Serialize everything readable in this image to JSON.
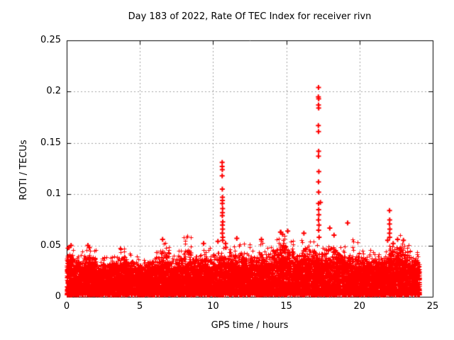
{
  "chart_data": {
    "type": "scatter",
    "title": "Day 183 of 2022, Rate Of TEC Index for receiver rivn",
    "xlabel": "GPS time / hours",
    "ylabel": "ROTI / TECUs",
    "xlim": [
      0,
      25
    ],
    "ylim": [
      0,
      0.25
    ],
    "xticks": [
      0,
      5,
      10,
      15,
      20,
      25
    ],
    "xtick_labels": [
      "0",
      "5",
      "10",
      "15",
      "20",
      "25"
    ],
    "yticks": [
      0,
      0.05,
      0.1,
      0.15,
      0.2,
      0.25
    ],
    "ytick_labels": [
      "0",
      "0.05",
      "0.1",
      "0.15",
      "0.2",
      "0.25"
    ],
    "grid": {
      "on": true,
      "style": "dashed",
      "color": "#a0a0a0",
      "at": "major-ticks"
    },
    "legend": "none",
    "marker": {
      "glyph": "plus",
      "color": "#ff0000"
    },
    "border_color": "#000000",
    "series_name": "ROTI",
    "outliers": [
      [
        10.62,
        0.131
      ],
      [
        10.62,
        0.127
      ],
      [
        10.63,
        0.124
      ],
      [
        10.62,
        0.118
      ],
      [
        10.63,
        0.105
      ],
      [
        10.64,
        0.097
      ],
      [
        10.64,
        0.094
      ],
      [
        10.63,
        0.091
      ],
      [
        10.65,
        0.086
      ],
      [
        10.64,
        0.082
      ],
      [
        10.63,
        0.079
      ],
      [
        10.66,
        0.073
      ],
      [
        10.64,
        0.07
      ],
      [
        10.65,
        0.066
      ],
      [
        10.63,
        0.062
      ],
      [
        10.66,
        0.058
      ],
      [
        10.65,
        0.055
      ],
      [
        10.85,
        0.052
      ],
      [
        10.87,
        0.048
      ],
      [
        10.33,
        0.054
      ],
      [
        17.2,
        0.204
      ],
      [
        17.19,
        0.195
      ],
      [
        17.21,
        0.193
      ],
      [
        17.2,
        0.187
      ],
      [
        17.21,
        0.184
      ],
      [
        17.19,
        0.167
      ],
      [
        17.2,
        0.161
      ],
      [
        17.21,
        0.142
      ],
      [
        17.2,
        0.137
      ],
      [
        17.22,
        0.122
      ],
      [
        17.2,
        0.112
      ],
      [
        17.21,
        0.102
      ],
      [
        17.2,
        0.091
      ],
      [
        17.33,
        0.092
      ],
      [
        17.21,
        0.085
      ],
      [
        17.22,
        0.08
      ],
      [
        17.2,
        0.075
      ],
      [
        17.23,
        0.07
      ],
      [
        17.21,
        0.065
      ],
      [
        17.24,
        0.058
      ],
      [
        22.05,
        0.084
      ],
      [
        22.06,
        0.075
      ],
      [
        22.05,
        0.071
      ],
      [
        22.07,
        0.066
      ],
      [
        22.05,
        0.062
      ],
      [
        22.06,
        0.058
      ],
      [
        21.92,
        0.055
      ],
      [
        22.3,
        0.052
      ],
      [
        19.19,
        0.072
      ],
      [
        17.97,
        0.067
      ],
      [
        18.26,
        0.06
      ],
      [
        6.55,
        0.056
      ],
      [
        14.6,
        0.063
      ],
      [
        14.75,
        0.061
      ],
      [
        16.2,
        0.062
      ],
      [
        11.62,
        0.057
      ],
      [
        0.15,
        0.048
      ],
      [
        0.3,
        0.05
      ],
      [
        1.45,
        0.05
      ],
      [
        1.55,
        0.048
      ],
      [
        9.35,
        0.052
      ],
      [
        13.3,
        0.056
      ],
      [
        15.1,
        0.064
      ],
      [
        22.6,
        0.056
      ],
      [
        23.0,
        0.055
      ]
    ],
    "noise_band": {
      "description": "dense band of ROTI noise, TECU floor to local envelope",
      "x_min": 0.0,
      "x_max": 24.1,
      "count": 14000,
      "seed": 20220183,
      "y_floor": 0.002,
      "bins_per_hour": 2,
      "dense_top": [
        0.03,
        0.026,
        0.028,
        0.03,
        0.025,
        0.024,
        0.026,
        0.028,
        0.026,
        0.024,
        0.023,
        0.026,
        0.028,
        0.03,
        0.025,
        0.026,
        0.028,
        0.027,
        0.029,
        0.026,
        0.029,
        0.031,
        0.029,
        0.027,
        0.028,
        0.029,
        0.027,
        0.028,
        0.031,
        0.033,
        0.032,
        0.029,
        0.032,
        0.033,
        0.031,
        0.029,
        0.033,
        0.034,
        0.03,
        0.027,
        0.026,
        0.024,
        0.026,
        0.028,
        0.033,
        0.034,
        0.029,
        0.026,
        0.024
      ],
      "spread_top": [
        0.05,
        0.042,
        0.05,
        0.048,
        0.038,
        0.04,
        0.04,
        0.048,
        0.042,
        0.04,
        0.038,
        0.042,
        0.048,
        0.056,
        0.04,
        0.045,
        0.06,
        0.046,
        0.052,
        0.048,
        0.055,
        0.048,
        0.05,
        0.056,
        0.052,
        0.048,
        0.056,
        0.05,
        0.06,
        0.065,
        0.056,
        0.05,
        0.062,
        0.056,
        0.052,
        0.06,
        0.06,
        0.05,
        0.046,
        0.056,
        0.046,
        0.048,
        0.042,
        0.046,
        0.056,
        0.06,
        0.056,
        0.044,
        0.04
      ]
    }
  }
}
